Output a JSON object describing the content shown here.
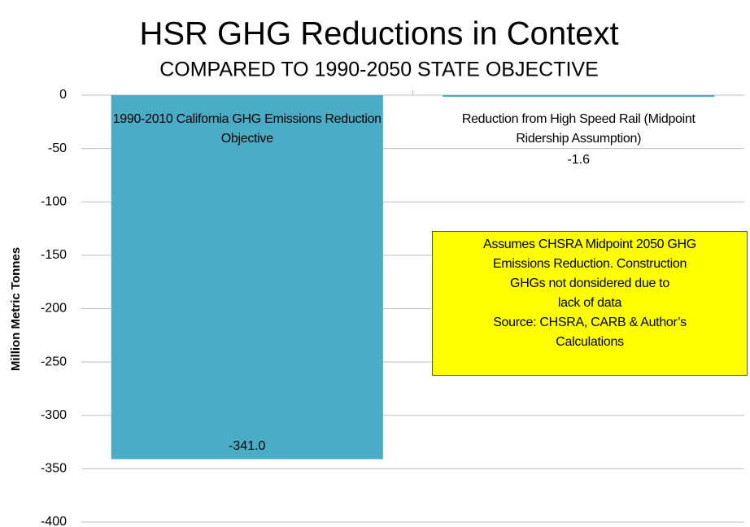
{
  "chart_data": {
    "type": "bar",
    "title": "HSR GHG Reductions in Context",
    "subtitle": "COMPARED TO 1990-2050 STATE OBJECTIVE",
    "y_label": "Million Metric Tonnes",
    "categories": [
      "1990-2010 California GHG Emissions Reduction Objective",
      "Reduction from High Speed Rail (Midpoint Ridership Assumption)"
    ],
    "values": [
      -341.0,
      -1.6
    ],
    "value_labels": [
      "-341.0",
      "-1.6"
    ],
    "color": "#4bacc6",
    "ylim": [
      -400,
      0
    ],
    "yticks": [
      0,
      -50,
      -100,
      -150,
      -200,
      -250,
      -300,
      -350,
      -400
    ],
    "grid": true,
    "annotation": [
      "Assumes CHSRA  Midpoint 2050 GHG",
      "Emissions Reduction. Construction",
      "GHGs not donsidered due to",
      "lack of data",
      "Source: CHSRA,  CARB & Author’s",
      "Calculations"
    ]
  }
}
